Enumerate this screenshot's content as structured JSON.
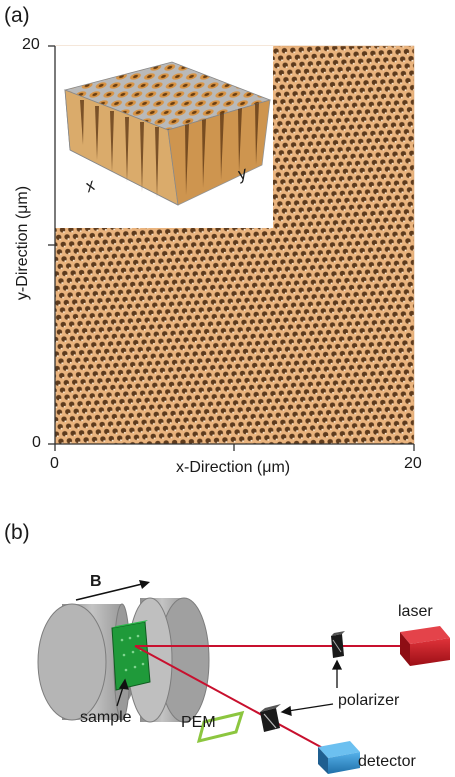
{
  "panel_a": {
    "label": "(a)",
    "x_axis": {
      "title": "x-Direction (μm)",
      "ticks": [
        "0",
        "20"
      ]
    },
    "y_axis": {
      "title": "y-Direction (μm)",
      "ticks": [
        "0",
        "20"
      ]
    },
    "inset": {
      "x_label": "x",
      "y_label": "y"
    },
    "colors": {
      "surface": "#e9b17a",
      "pore": "#5a3a1f",
      "inset_surface": "#c98a3c"
    }
  },
  "panel_b": {
    "label": "(b)",
    "labels": {
      "field": "B",
      "laser": "laser",
      "polarizer": "polarizer",
      "pem": "PEM",
      "sample": "sample",
      "detector": "detector"
    },
    "colors": {
      "beam": "#c8102e",
      "laser": "#c0141c",
      "sample": "#1f9a3a",
      "pem": "#8cc63f",
      "detector": "#2f8fd1",
      "magnet": "#a8a8a8"
    }
  }
}
